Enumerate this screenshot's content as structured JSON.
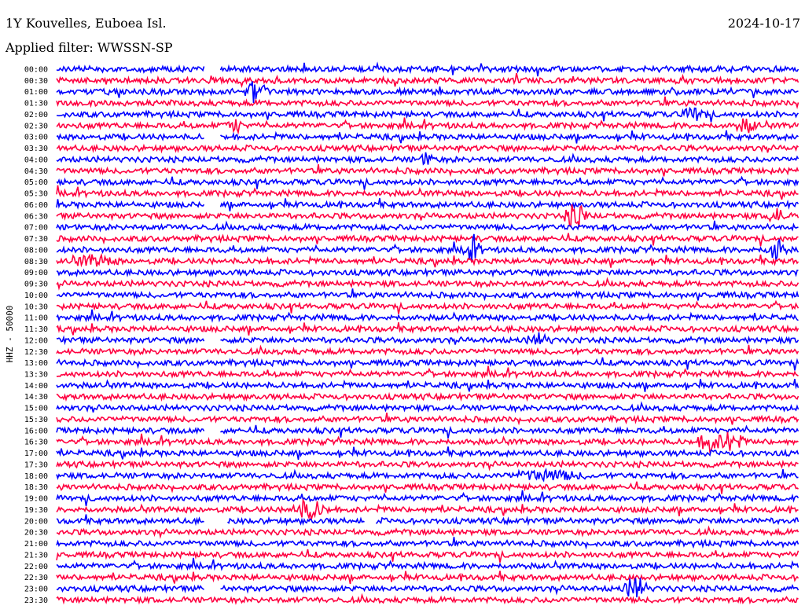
{
  "header": {
    "station": "1Y Kouvelles, Euboea Isl.",
    "date": "2024-10-17",
    "filter": "Applied filter: WWSSN-SP"
  },
  "chart_data": {
    "type": "line",
    "subtype": "helicorder",
    "ylabel": "HHZ - 50000",
    "row_labels": [
      "00:00",
      "00:30",
      "01:00",
      "01:30",
      "02:00",
      "02:30",
      "03:00",
      "03:30",
      "04:00",
      "04:30",
      "05:00",
      "05:30",
      "06:00",
      "06:30",
      "07:00",
      "07:30",
      "08:00",
      "08:30",
      "09:00",
      "09:30",
      "10:00",
      "10:30",
      "11:00",
      "11:30",
      "12:00",
      "12:30",
      "13:00",
      "13:30",
      "14:00",
      "14:30",
      "15:00",
      "15:30",
      "16:00",
      "16:30",
      "17:00",
      "17:30",
      "18:00",
      "18:30",
      "19:00",
      "19:30",
      "20:00",
      "20:30",
      "21:00",
      "21:30",
      "22:00",
      "22:30",
      "23:00",
      "23:30"
    ],
    "colors": [
      "#0000ff",
      "#ff0040"
    ],
    "gaps": [
      {
        "row": "00:00",
        "start": 0.2,
        "end": 0.22
      },
      {
        "row": "03:00",
        "start": 0.2,
        "end": 0.22
      },
      {
        "row": "06:00",
        "start": 0.2,
        "end": 0.22
      },
      {
        "row": "12:00",
        "start": 0.2,
        "end": 0.22
      },
      {
        "row": "16:00",
        "start": 0.2,
        "end": 0.22
      },
      {
        "row": "20:00",
        "start": 0.2,
        "end": 0.23
      },
      {
        "row": "20:00",
        "start": 0.415,
        "end": 0.43
      },
      {
        "row": "23:00",
        "start": 0.2,
        "end": 0.22
      }
    ],
    "events": [
      {
        "row": "01:00",
        "pos": 0.27,
        "amp": 14,
        "dur": 0.02
      },
      {
        "row": "02:00",
        "pos": 0.86,
        "amp": 8,
        "dur": 0.02
      },
      {
        "row": "02:30",
        "pos": 0.24,
        "amp": 8,
        "dur": 0.015
      },
      {
        "row": "02:30",
        "pos": 0.93,
        "amp": 8,
        "dur": 0.02
      },
      {
        "row": "04:00",
        "pos": 0.5,
        "amp": 8,
        "dur": 0.012
      },
      {
        "row": "06:30",
        "pos": 0.7,
        "amp": 16,
        "dur": 0.02
      },
      {
        "row": "06:30",
        "pos": 0.97,
        "amp": 10,
        "dur": 0.015
      },
      {
        "row": "08:00",
        "pos": 0.56,
        "amp": 14,
        "dur": 0.015
      },
      {
        "row": "08:00",
        "pos": 0.97,
        "amp": 16,
        "dur": 0.015
      },
      {
        "row": "08:30",
        "pos": 0.05,
        "amp": 6,
        "dur": 0.04
      },
      {
        "row": "12:00",
        "pos": 0.65,
        "amp": 7,
        "dur": 0.02
      },
      {
        "row": "16:30",
        "pos": 0.88,
        "amp": 12,
        "dur": 0.02
      },
      {
        "row": "16:30",
        "pos": 0.91,
        "amp": 14,
        "dur": 0.02
      },
      {
        "row": "18:00",
        "pos": 0.66,
        "amp": 6,
        "dur": 0.06
      },
      {
        "row": "19:30",
        "pos": 0.34,
        "amp": 12,
        "dur": 0.03
      },
      {
        "row": "23:00",
        "pos": 0.78,
        "amp": 16,
        "dur": 0.02
      }
    ]
  }
}
